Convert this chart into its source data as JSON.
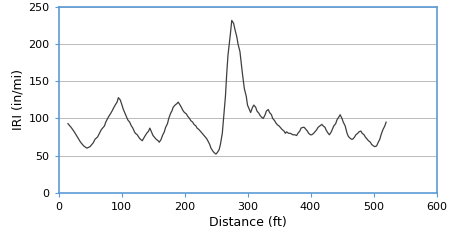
{
  "title": "",
  "xlabel": "Distance (ft)",
  "ylabel": "IRI (in/mi)",
  "xlim": [
    0,
    600
  ],
  "ylim": [
    0,
    250
  ],
  "xticks": [
    0,
    100,
    200,
    300,
    400,
    500,
    600
  ],
  "yticks": [
    0,
    50,
    100,
    150,
    200,
    250
  ],
  "line_color": "#3f3f3f",
  "line_width": 0.9,
  "grid_color": "#b0b0b0",
  "background_color": "#ffffff",
  "spine_color": "#5b9bd5",
  "x": [
    15,
    20,
    25,
    30,
    35,
    40,
    45,
    50,
    55,
    58,
    62,
    65,
    68,
    70,
    73,
    75,
    78,
    80,
    83,
    85,
    88,
    90,
    93,
    95,
    98,
    100,
    103,
    105,
    108,
    110,
    113,
    115,
    118,
    120,
    122,
    125,
    128,
    130,
    133,
    135,
    137,
    140,
    143,
    145,
    148,
    150,
    153,
    155,
    158,
    160,
    163,
    165,
    168,
    170,
    173,
    175,
    178,
    180,
    182,
    185,
    188,
    190,
    193,
    195,
    198,
    200,
    203,
    205,
    208,
    210,
    213,
    215,
    218,
    220,
    223,
    225,
    228,
    230,
    233,
    235,
    237,
    240,
    242,
    245,
    247,
    250,
    252,
    255,
    257,
    260,
    262,
    265,
    267,
    269,
    271,
    273,
    275,
    278,
    280,
    283,
    285,
    288,
    290,
    292,
    295,
    298,
    300,
    303,
    305,
    308,
    310,
    313,
    315,
    318,
    320,
    322,
    325,
    328,
    330,
    333,
    335,
    338,
    340,
    343,
    345,
    348,
    350,
    353,
    355,
    358,
    360,
    362,
    365,
    368,
    370,
    372,
    375,
    378,
    380,
    383,
    385,
    388,
    390,
    393,
    395,
    397,
    400,
    402,
    405,
    407,
    410,
    412,
    415,
    418,
    420,
    423,
    425,
    428,
    430,
    433,
    435,
    437,
    440,
    442,
    445,
    447,
    450,
    452,
    455,
    458,
    460,
    462,
    465,
    467,
    470,
    472,
    475,
    477,
    480,
    482,
    485,
    487,
    490,
    492,
    495,
    497,
    500,
    502,
    505,
    507,
    510,
    512,
    515,
    518,
    520
  ],
  "y": [
    93,
    88,
    82,
    75,
    68,
    63,
    60,
    62,
    67,
    72,
    75,
    80,
    85,
    87,
    90,
    95,
    100,
    103,
    107,
    110,
    115,
    118,
    122,
    128,
    125,
    120,
    112,
    108,
    102,
    98,
    95,
    91,
    87,
    83,
    80,
    78,
    74,
    72,
    70,
    73,
    76,
    80,
    83,
    87,
    81,
    77,
    74,
    72,
    70,
    68,
    72,
    77,
    82,
    88,
    93,
    100,
    107,
    110,
    115,
    118,
    120,
    122,
    118,
    115,
    110,
    108,
    106,
    103,
    100,
    97,
    95,
    92,
    90,
    87,
    85,
    83,
    80,
    78,
    75,
    73,
    70,
    65,
    60,
    56,
    54,
    52,
    54,
    58,
    65,
    80,
    100,
    130,
    160,
    185,
    200,
    215,
    232,
    228,
    220,
    210,
    200,
    190,
    175,
    160,
    140,
    130,
    118,
    112,
    108,
    115,
    118,
    115,
    110,
    107,
    104,
    102,
    100,
    105,
    110,
    112,
    108,
    105,
    100,
    97,
    94,
    91,
    90,
    87,
    85,
    83,
    80,
    82,
    80,
    80,
    79,
    78,
    78,
    77,
    80,
    83,
    87,
    88,
    88,
    85,
    83,
    80,
    78,
    78,
    80,
    82,
    85,
    88,
    90,
    92,
    90,
    88,
    84,
    80,
    78,
    82,
    86,
    90,
    93,
    98,
    102,
    105,
    100,
    95,
    90,
    80,
    76,
    74,
    72,
    72,
    75,
    78,
    80,
    82,
    83,
    80,
    78,
    75,
    72,
    70,
    68,
    65,
    63,
    62,
    63,
    67,
    72,
    78,
    85,
    90,
    95
  ]
}
